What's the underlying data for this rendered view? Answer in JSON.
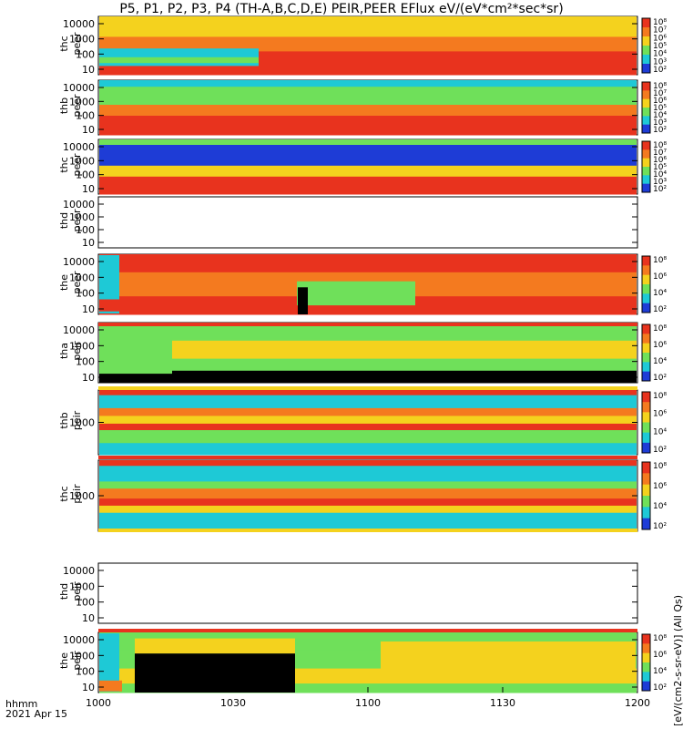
{
  "title": "P5, P1, P2, P3, P4 (TH-A,B,C,D,E) PEIR,PEER EFlux eV/(eV*cm²*sec*sr)",
  "footer": {
    "time_label": "hhmm",
    "date_label": "2021 Apr 15",
    "units_label": "[eV/(cm2-s-sr-eV)] (All Qs)"
  },
  "chart_data": {
    "type": "heatmap",
    "title": "P5, P1, P2, P3, P4 (TH-A,B,C,D,E) PEIR,PEER EFlux eV/(eV*cm²*sec*sr)",
    "x_ticks": [
      "1000",
      "1030",
      "1100",
      "1130",
      "1200"
    ],
    "x_range": [
      "10:00",
      "12:00"
    ],
    "colorbar_ticks": [
      "10²",
      "10⁴",
      "10⁶",
      "10⁸"
    ],
    "colorbar_ticks_fine": [
      "10²",
      "10³",
      "10⁴",
      "10⁵",
      "10⁶",
      "10⁷",
      "10⁸"
    ],
    "panels": [
      {
        "label_top": "thc",
        "label_bottom": "peer",
        "yticks": [
          "10000",
          "1000",
          "100",
          "10"
        ],
        "has_data": true,
        "colorbar": "fine"
      },
      {
        "label_top": "thb",
        "label_bottom": "peer",
        "yticks": [
          "10000",
          "1000",
          "100",
          "10"
        ],
        "has_data": true,
        "colorbar": "fine"
      },
      {
        "label_top": "thc",
        "label_bottom": "peer",
        "yticks": [
          "10000",
          "1000",
          "100",
          "10"
        ],
        "has_data": true,
        "colorbar": "fine"
      },
      {
        "label_top": "thd",
        "label_bottom": "peer",
        "yticks": [
          "10000",
          "1000",
          "100",
          "10"
        ],
        "has_data": false,
        "colorbar": "none"
      },
      {
        "label_top": "the",
        "label_bottom": "peer",
        "yticks": [
          "10000",
          "1000",
          "100",
          "10"
        ],
        "has_data": true,
        "colorbar": "coarse"
      },
      {
        "label_top": "tha",
        "label_bottom": "peir",
        "yticks": [
          "10000",
          "1000",
          "100",
          "10"
        ],
        "has_data": true,
        "colorbar": "coarse0"
      },
      {
        "label_top": "thb",
        "label_bottom": "peir",
        "yticks": [
          "1000"
        ],
        "has_data": true,
        "colorbar": "coarse"
      },
      {
        "label_top": "thc",
        "label_bottom": "peir",
        "yticks": [
          "1000"
        ],
        "has_data": true,
        "colorbar": "coarse"
      },
      {
        "label_top": "thd",
        "label_bottom": "peir",
        "yticks": [
          "10000",
          "1000",
          "100",
          "10"
        ],
        "has_data": false,
        "colorbar": "none"
      },
      {
        "label_top": "the",
        "label_bottom": "peir",
        "yticks": [
          "10000",
          "1000",
          "100",
          "10"
        ],
        "has_data": true,
        "colorbar": "coarse"
      }
    ],
    "colors": {
      "red": "#e8331e",
      "orange": "#f47a1f",
      "yellow": "#f4d21e",
      "green": "#6fe05a",
      "cyan": "#1ec9d6",
      "blue": "#1e3cd6",
      "black": "#000000"
    }
  }
}
